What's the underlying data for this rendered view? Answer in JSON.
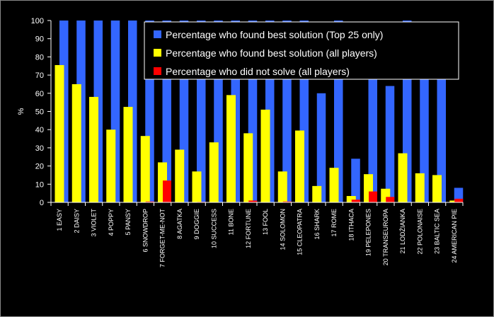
{
  "chart_data": {
    "type": "bar",
    "ylabel": "%",
    "ylim": [
      0,
      100
    ],
    "yticks": [
      0,
      10,
      20,
      30,
      40,
      50,
      60,
      70,
      80,
      90,
      100
    ],
    "legend_position": "top-right",
    "categories": [
      "1 EASY",
      "2 DAISY",
      "3 VIOLET",
      "4 POPPY",
      "5 PANSY",
      "6 SNOWDROP",
      "7 FORGET-ME-NOT",
      "8 AGATKA",
      "9 DOGGIE",
      "10 SUCCESS",
      "11 BONE",
      "12 FORTUNE",
      "13 FOOL",
      "14 SOLOMON",
      "15 CLEOPATRA",
      "16 SHARK",
      "17 ROME",
      "18 ITHACA",
      "19 PELEPONES",
      "20 TRANSEUROPA",
      "21 LODŹIANKA",
      "22 POLONAISE",
      "23 BALTIC SEA",
      "24 AMERICAN PIE"
    ],
    "series": [
      {
        "name": "Percentage who found best solution (Top 25 only)",
        "color": "#3366ff",
        "values": [
          100,
          100,
          100,
          100,
          100,
          100,
          100,
          100,
          100,
          100,
          100,
          100,
          100,
          100,
          100,
          60,
          100,
          24,
          84,
          64,
          100,
          84,
          84,
          8
        ]
      },
      {
        "name": "Percentage who found best solution (all players)",
        "color": "#ffff00",
        "values": [
          75.5,
          65,
          58,
          40,
          52.5,
          36.5,
          22,
          29,
          17,
          33,
          59,
          38,
          51,
          17,
          39.5,
          9,
          19,
          3.5,
          15.5,
          7.5,
          27,
          16,
          15,
          1
        ]
      },
      {
        "name": "Percentage who did not solve (all players)",
        "color": "#ff0000",
        "values": [
          0,
          0,
          0,
          0,
          0,
          0.5,
          12,
          0,
          0.3,
          0,
          0,
          1,
          0,
          0.5,
          0,
          0,
          0,
          1.5,
          6,
          3,
          0,
          0,
          0,
          2
        ]
      }
    ]
  }
}
